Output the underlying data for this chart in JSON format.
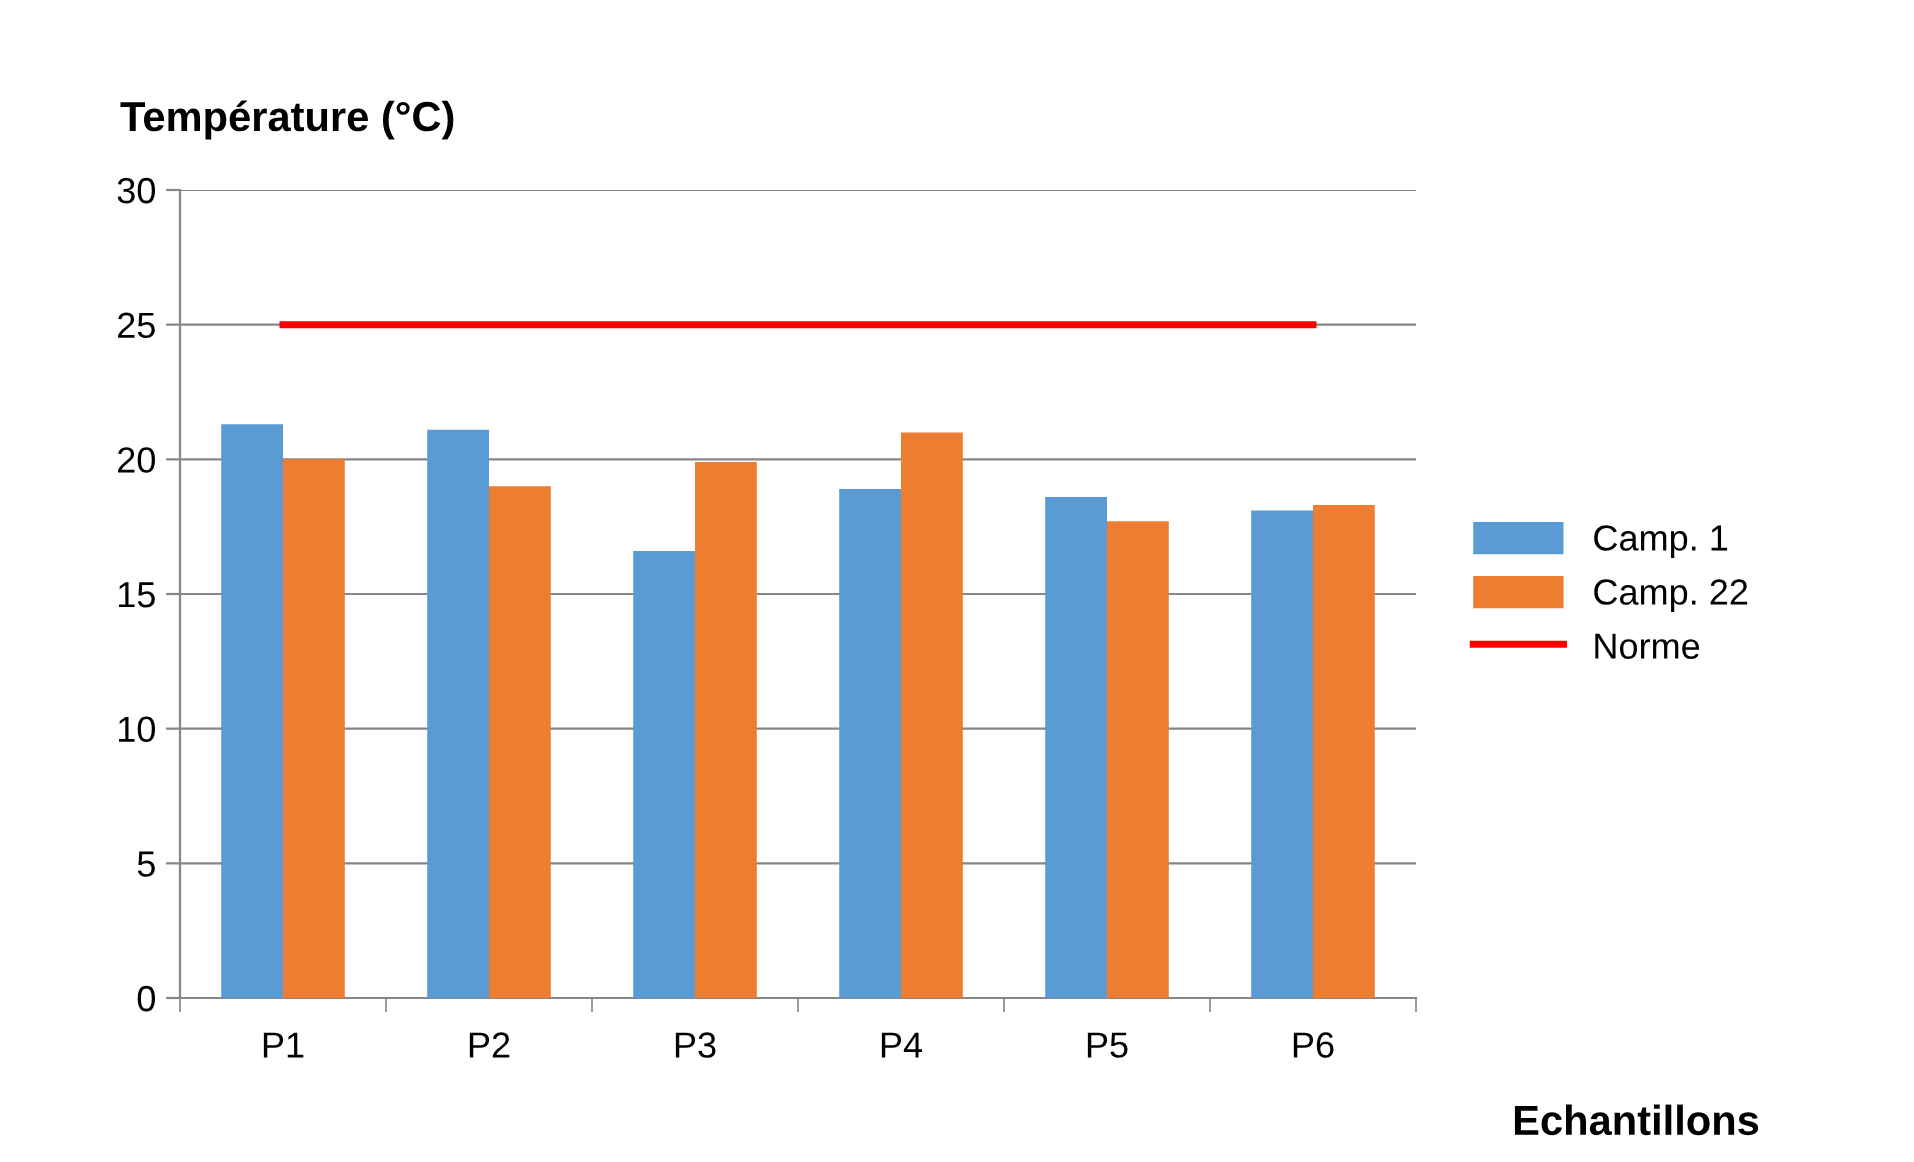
{
  "chart_data": {
    "type": "bar",
    "ylabel": "Température (°C)",
    "xlabel": "Echantillons",
    "categories": [
      "P1",
      "P2",
      "P3",
      "P4",
      "P5",
      "P6"
    ],
    "series": [
      {
        "name": "Camp. 1",
        "color": "#5b9bd5",
        "values": [
          21.3,
          21.1,
          16.6,
          18.9,
          18.6,
          18.1
        ]
      },
      {
        "name": "Camp. 22",
        "color": "#ed7d31",
        "values": [
          20.0,
          19.0,
          19.9,
          21.0,
          17.7,
          18.3
        ]
      },
      {
        "name": "Norme",
        "color": "#ff0000",
        "type": "line",
        "values": [
          25,
          25,
          25,
          25,
          25,
          25
        ]
      }
    ],
    "ylim": [
      0,
      30
    ],
    "yticks": [
      0,
      5,
      10,
      15,
      20,
      25,
      30
    ],
    "grid": "y",
    "legend": "right"
  }
}
